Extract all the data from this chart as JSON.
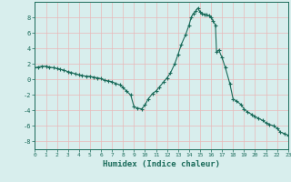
{
  "xlabel": "Humidex (Indice chaleur)",
  "ylabel": "",
  "background_color": "#d8eeed",
  "plot_bg_color": "#d8eeed",
  "grid_color": "#e8b8b8",
  "line_color": "#1a6b5a",
  "marker_color": "#1a6b5a",
  "xlim": [
    0,
    23
  ],
  "ylim": [
    -9,
    10
  ],
  "yticks": [
    -8,
    -6,
    -4,
    -2,
    0,
    2,
    4,
    6,
    8
  ],
  "xticks": [
    0,
    1,
    2,
    3,
    4,
    5,
    6,
    7,
    8,
    9,
    10,
    11,
    12,
    13,
    14,
    15,
    16,
    17,
    18,
    19,
    20,
    21,
    22,
    23
  ],
  "x": [
    0,
    0.3,
    0.6,
    1,
    1.3,
    1.7,
    2,
    2.3,
    2.6,
    3,
    3.3,
    3.7,
    4,
    4.3,
    4.7,
    5,
    5.3,
    5.7,
    6,
    6.3,
    6.7,
    7,
    7.3,
    7.7,
    8,
    8.3,
    8.7,
    9,
    9.3,
    9.7,
    10,
    10.3,
    10.7,
    11,
    11.3,
    11.7,
    12,
    12.3,
    12.7,
    13,
    13.3,
    13.7,
    14,
    14.2,
    14.4,
    14.6,
    14.8,
    15,
    15.2,
    15.4,
    15.6,
    15.8,
    16,
    16.2,
    16.4,
    16.5,
    16.7,
    17,
    17.3,
    17.7,
    18,
    18.3,
    18.7,
    19,
    19.3,
    19.7,
    20,
    20.3,
    20.7,
    21,
    21.3,
    21.7,
    22,
    22.3,
    22.7,
    23
  ],
  "y": [
    1.5,
    1.6,
    1.7,
    1.7,
    1.6,
    1.5,
    1.4,
    1.3,
    1.2,
    1.0,
    0.9,
    0.7,
    0.6,
    0.5,
    0.4,
    0.4,
    0.3,
    0.2,
    0.1,
    -0.1,
    -0.2,
    -0.3,
    -0.5,
    -0.7,
    -1.0,
    -1.5,
    -2.0,
    -3.5,
    -3.7,
    -3.8,
    -3.3,
    -2.5,
    -1.8,
    -1.5,
    -1.0,
    -0.3,
    0.2,
    0.8,
    2.0,
    3.2,
    4.5,
    5.8,
    7.0,
    8.0,
    8.5,
    8.8,
    9.2,
    8.7,
    8.5,
    8.4,
    8.3,
    8.2,
    8.0,
    7.5,
    7.0,
    3.5,
    3.8,
    2.8,
    1.5,
    -0.5,
    -2.5,
    -2.8,
    -3.2,
    -3.8,
    -4.2,
    -4.5,
    -4.8,
    -5.0,
    -5.3,
    -5.6,
    -5.8,
    -6.0,
    -6.3,
    -6.8,
    -7.0,
    -7.2
  ]
}
